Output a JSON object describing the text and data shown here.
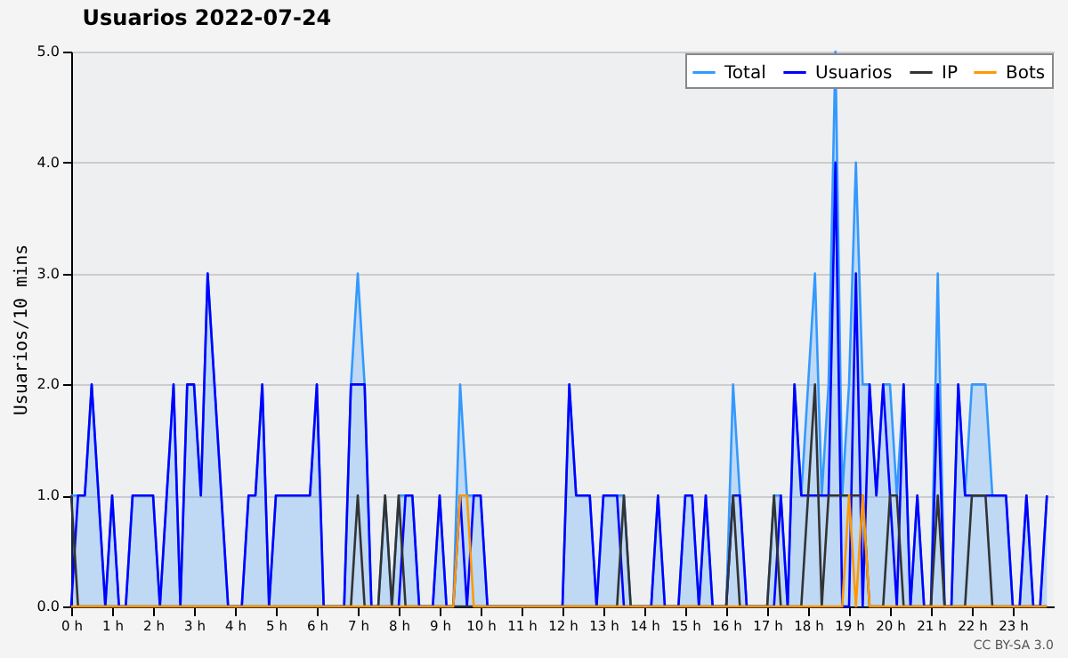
{
  "chart_data": {
    "type": "line",
    "title": "Usuarios  2022-07-24",
    "ylabel": "Usuarios/10 mins",
    "annotations": [
      "CC BY-SA 3.0"
    ],
    "x": [
      0,
      0.167,
      0.333,
      0.5,
      0.667,
      0.833,
      1,
      1.167,
      1.333,
      1.5,
      1.667,
      1.833,
      2,
      2.167,
      2.333,
      2.5,
      2.667,
      2.833,
      3,
      3.167,
      3.333,
      3.5,
      3.667,
      3.833,
      4,
      4.167,
      4.333,
      4.5,
      4.667,
      4.833,
      5,
      5.167,
      5.333,
      5.5,
      5.667,
      5.833,
      6,
      6.167,
      6.333,
      6.5,
      6.667,
      6.833,
      7,
      7.167,
      7.333,
      7.5,
      7.667,
      7.833,
      8,
      8.167,
      8.333,
      8.5,
      8.667,
      8.833,
      9,
      9.167,
      9.333,
      9.5,
      9.667,
      9.833,
      10,
      10.167,
      10.333,
      10.5,
      10.667,
      10.833,
      11,
      11.167,
      11.333,
      11.5,
      11.667,
      11.833,
      12,
      12.167,
      12.333,
      12.5,
      12.667,
      12.833,
      13,
      13.167,
      13.333,
      13.5,
      13.667,
      13.833,
      14,
      14.167,
      14.333,
      14.5,
      14.667,
      14.833,
      15,
      15.167,
      15.333,
      15.5,
      15.667,
      15.833,
      16,
      16.167,
      16.333,
      16.5,
      16.667,
      16.833,
      17,
      17.167,
      17.333,
      17.5,
      17.667,
      17.833,
      18,
      18.167,
      18.333,
      18.5,
      18.667,
      18.833,
      19,
      19.167,
      19.333,
      19.5,
      19.667,
      19.833,
      20,
      20.167,
      20.333,
      20.5,
      20.667,
      20.833,
      21,
      21.167,
      21.333,
      21.5,
      21.667,
      21.833,
      22,
      22.167,
      22.333,
      22.5,
      22.667,
      22.833,
      23,
      23.167,
      23.333,
      23.5,
      23.667,
      23.833
    ],
    "series": [
      {
        "name": "Total",
        "type": "area",
        "color": "#3399ff",
        "values": [
          1,
          1,
          1,
          2,
          1,
          0,
          1,
          0,
          0,
          1,
          1,
          1,
          1,
          0,
          1,
          2,
          0,
          2,
          2,
          1,
          3,
          2,
          1,
          0,
          0,
          0,
          1,
          1,
          2,
          0,
          1,
          1,
          1,
          1,
          1,
          1,
          2,
          0,
          0,
          0,
          0,
          2,
          3,
          2,
          0,
          0,
          1,
          0,
          1,
          1,
          1,
          0,
          0,
          0,
          1,
          0,
          0,
          2,
          1,
          1,
          1,
          0,
          0,
          0,
          0,
          0,
          0,
          0,
          0,
          0,
          0,
          0,
          0,
          2,
          1,
          1,
          1,
          0,
          1,
          1,
          1,
          1,
          0,
          0,
          0,
          0,
          1,
          0,
          0,
          0,
          1,
          1,
          0,
          1,
          0,
          0,
          0,
          2,
          1,
          0,
          0,
          0,
          0,
          1,
          1,
          0,
          2,
          1,
          2,
          3,
          1,
          2,
          5,
          1,
          2,
          4,
          2,
          2,
          1,
          2,
          2,
          1,
          2,
          0,
          1,
          0,
          0,
          3,
          0,
          0,
          2,
          1,
          2,
          2,
          2,
          1,
          1,
          1,
          0,
          0,
          1,
          0,
          0,
          1
        ]
      },
      {
        "name": "Usuarios",
        "color": "#0000ff",
        "values": [
          0,
          1,
          1,
          2,
          1,
          0,
          1,
          0,
          0,
          1,
          1,
          1,
          1,
          0,
          1,
          2,
          0,
          2,
          2,
          1,
          3,
          2,
          1,
          0,
          0,
          0,
          1,
          1,
          2,
          0,
          1,
          1,
          1,
          1,
          1,
          1,
          2,
          0,
          0,
          0,
          0,
          2,
          2,
          2,
          0,
          0,
          0,
          0,
          0,
          1,
          1,
          0,
          0,
          0,
          1,
          0,
          0,
          1,
          0,
          1,
          1,
          0,
          0,
          0,
          0,
          0,
          0,
          0,
          0,
          0,
          0,
          0,
          0,
          2,
          1,
          1,
          1,
          0,
          1,
          1,
          1,
          0,
          0,
          0,
          0,
          0,
          1,
          0,
          0,
          0,
          1,
          1,
          0,
          1,
          0,
          0,
          0,
          1,
          1,
          0,
          0,
          0,
          0,
          0,
          1,
          0,
          2,
          1,
          1,
          1,
          1,
          1,
          4,
          0,
          0,
          3,
          0,
          2,
          1,
          2,
          1,
          0,
          2,
          0,
          1,
          0,
          0,
          2,
          0,
          0,
          2,
          1,
          1,
          1,
          1,
          1,
          1,
          1,
          0,
          0,
          1,
          0,
          0,
          1
        ]
      },
      {
        "name": "IP",
        "color": "#333333",
        "values": [
          1,
          0,
          0,
          0,
          0,
          0,
          0,
          0,
          0,
          0,
          0,
          0,
          0,
          0,
          0,
          0,
          0,
          0,
          0,
          0,
          0,
          0,
          0,
          0,
          0,
          0,
          0,
          0,
          0,
          0,
          0,
          0,
          0,
          0,
          0,
          0,
          0,
          0,
          0,
          0,
          0,
          0,
          1,
          0,
          0,
          0,
          1,
          0,
          1,
          0,
          0,
          0,
          0,
          0,
          0,
          0,
          0,
          0,
          0,
          0,
          0,
          0,
          0,
          0,
          0,
          0,
          0,
          0,
          0,
          0,
          0,
          0,
          0,
          0,
          0,
          0,
          0,
          0,
          0,
          0,
          0,
          1,
          0,
          0,
          0,
          0,
          0,
          0,
          0,
          0,
          0,
          0,
          0,
          0,
          0,
          0,
          0,
          1,
          0,
          0,
          0,
          0,
          0,
          1,
          0,
          0,
          0,
          0,
          1,
          2,
          0,
          1,
          1,
          1,
          1,
          1,
          1,
          0,
          0,
          0,
          1,
          1,
          0,
          0,
          0,
          0,
          0,
          1,
          0,
          0,
          0,
          0,
          1,
          1,
          1,
          0,
          0,
          0,
          0,
          0,
          0,
          0,
          0,
          0
        ]
      },
      {
        "name": "Bots",
        "color": "#ff9900",
        "values": [
          0,
          0,
          0,
          0,
          0,
          0,
          0,
          0,
          0,
          0,
          0,
          0,
          0,
          0,
          0,
          0,
          0,
          0,
          0,
          0,
          0,
          0,
          0,
          0,
          0,
          0,
          0,
          0,
          0,
          0,
          0,
          0,
          0,
          0,
          0,
          0,
          0,
          0,
          0,
          0,
          0,
          0,
          0,
          0,
          0,
          0,
          0,
          0,
          0,
          0,
          0,
          0,
          0,
          0,
          0,
          0,
          0,
          1,
          1,
          0,
          0,
          0,
          0,
          0,
          0,
          0,
          0,
          0,
          0,
          0,
          0,
          0,
          0,
          0,
          0,
          0,
          0,
          0,
          0,
          0,
          0,
          0,
          0,
          0,
          0,
          0,
          0,
          0,
          0,
          0,
          0,
          0,
          0,
          0,
          0,
          0,
          0,
          0,
          0,
          0,
          0,
          0,
          0,
          0,
          0,
          0,
          0,
          0,
          0,
          0,
          0,
          0,
          0,
          0,
          1,
          0,
          1,
          0,
          0,
          0,
          0,
          0,
          0,
          0,
          0,
          0,
          0,
          0,
          0,
          0,
          0,
          0,
          0,
          0,
          0,
          0,
          0,
          0,
          0,
          0,
          0,
          0,
          0,
          0
        ]
      }
    ],
    "xlim": [
      0,
      24
    ],
    "xticks": [
      {
        "value": 0,
        "label": "0 h"
      },
      {
        "value": 1,
        "label": "1 h"
      },
      {
        "value": 2,
        "label": "2 h"
      },
      {
        "value": 3,
        "label": "3 h"
      },
      {
        "value": 4,
        "label": "4 h"
      },
      {
        "value": 5,
        "label": "5 h"
      },
      {
        "value": 6,
        "label": "6 h"
      },
      {
        "value": 7,
        "label": "7 h"
      },
      {
        "value": 8,
        "label": "8 h"
      },
      {
        "value": 9,
        "label": "9 h"
      },
      {
        "value": 10,
        "label": "10 h"
      },
      {
        "value": 11,
        "label": "11 h"
      },
      {
        "value": 12,
        "label": "12 h"
      },
      {
        "value": 13,
        "label": "13 h"
      },
      {
        "value": 14,
        "label": "14 h"
      },
      {
        "value": 15,
        "label": "15 h"
      },
      {
        "value": 16,
        "label": "16 h"
      },
      {
        "value": 17,
        "label": "17 h"
      },
      {
        "value": 18,
        "label": "18 h"
      },
      {
        "value": 19,
        "label": "19 h"
      },
      {
        "value": 20,
        "label": "20 h"
      },
      {
        "value": 21,
        "label": "21 h"
      },
      {
        "value": 22,
        "label": "22 h"
      },
      {
        "value": 23,
        "label": "23 h"
      }
    ],
    "ylim": [
      0,
      5
    ],
    "yticks": [
      {
        "value": 0,
        "label": "0.0"
      },
      {
        "value": 1,
        "label": "1.0"
      },
      {
        "value": 2,
        "label": "2.0"
      },
      {
        "value": 3,
        "label": "3.0"
      },
      {
        "value": 4,
        "label": "4.0"
      },
      {
        "value": 5,
        "label": "5.0"
      }
    ],
    "grid": "y",
    "legend": "top right"
  }
}
